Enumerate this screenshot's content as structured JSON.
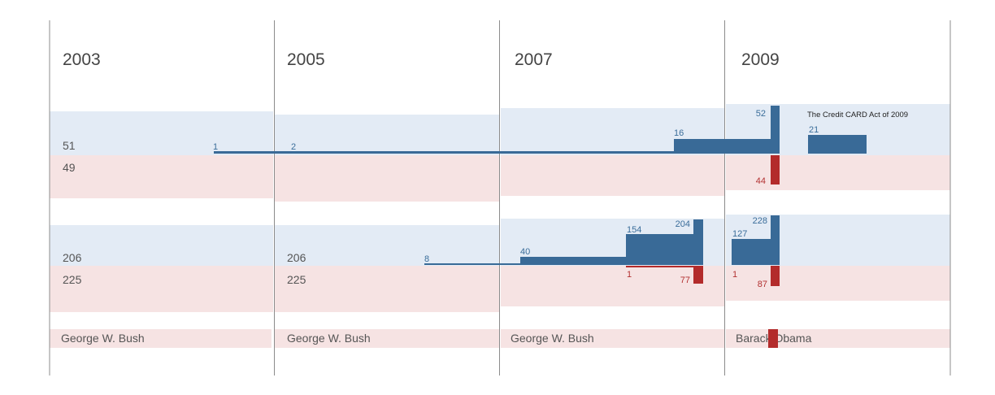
{
  "chart_data": {
    "type": "bar",
    "title": "",
    "congresses": [
      {
        "year": "2003",
        "president": "George W. Bush",
        "senate": {
          "dem": "51",
          "rep": "49"
        },
        "house": {
          "dem": "206",
          "rep": "225"
        }
      },
      {
        "year": "2005",
        "president": "George W. Bush",
        "senate": {
          "dem": "",
          "rep": ""
        },
        "house": {
          "dem": "206",
          "rep": "225"
        }
      },
      {
        "year": "2007",
        "president": "George W. Bush",
        "senate": {
          "dem": "",
          "rep": ""
        },
        "house": {
          "dem": "",
          "rep": ""
        }
      },
      {
        "year": "2009",
        "president": "Barack Obama",
        "senate": {
          "dem": "",
          "rep": ""
        },
        "house": {
          "dem": "",
          "rep": ""
        }
      }
    ],
    "series": [
      {
        "chamber": "senate",
        "party": "dem",
        "label": "1",
        "value": 1
      },
      {
        "chamber": "senate",
        "party": "dem",
        "label": "2",
        "value": 2
      },
      {
        "chamber": "senate",
        "party": "dem",
        "label": "16",
        "value": 16
      },
      {
        "chamber": "senate",
        "party": "dem",
        "label": "52",
        "value": 52
      },
      {
        "chamber": "senate",
        "party": "rep",
        "label": "44",
        "value": 44
      },
      {
        "chamber": "senate",
        "party": "dem",
        "label": "21",
        "value": 21
      },
      {
        "chamber": "house",
        "party": "dem",
        "label": "8",
        "value": 8
      },
      {
        "chamber": "house",
        "party": "dem",
        "label": "40",
        "value": 40
      },
      {
        "chamber": "house",
        "party": "dem",
        "label": "154",
        "value": 154
      },
      {
        "chamber": "house",
        "party": "dem",
        "label": "204",
        "value": 204
      },
      {
        "chamber": "house",
        "party": "rep",
        "label": "1",
        "value": 1
      },
      {
        "chamber": "house",
        "party": "rep",
        "label": "77",
        "value": 77
      },
      {
        "chamber": "house",
        "party": "dem",
        "label": "127",
        "value": 127
      },
      {
        "chamber": "house",
        "party": "dem",
        "label": "228",
        "value": 228
      },
      {
        "chamber": "house",
        "party": "rep",
        "label": "1",
        "value": 1
      },
      {
        "chamber": "house",
        "party": "rep",
        "label": "87",
        "value": 87
      }
    ],
    "annotation": "The Credit CARD Act of 2009",
    "colors": {
      "dem": "#396a97",
      "rep": "#b32b2b",
      "dem_bg": "#e3ebf5",
      "rep_bg": "#f6e3e3",
      "divider": "#8c8c8c"
    }
  }
}
